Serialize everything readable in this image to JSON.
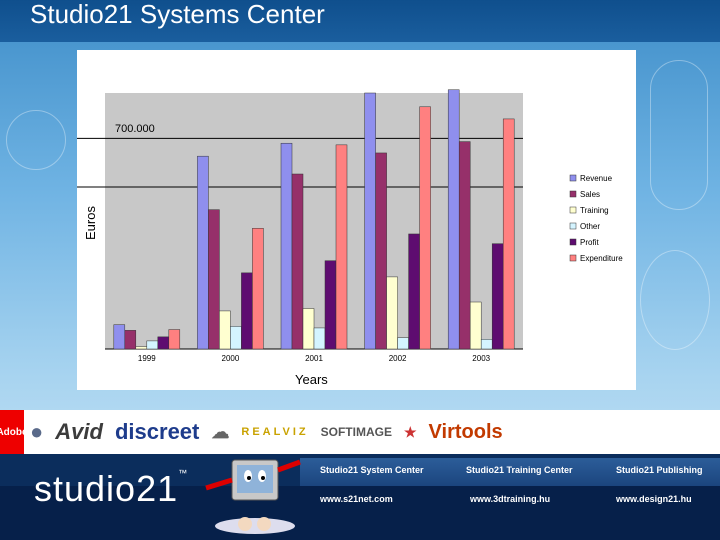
{
  "slide": {
    "title": "Studio21 Systems Center"
  },
  "colors": {
    "revenue": "#8f8fee",
    "sales": "#96306a",
    "training": "#ffffd0",
    "other": "#d4f4ff",
    "profit": "#5e0c70",
    "expenditure": "#ff8080"
  },
  "chart_data": {
    "type": "bar",
    "categories": [
      "1999",
      "2000",
      "2001",
      "2002",
      "2003"
    ],
    "series": [
      {
        "name": "Revenue",
        "color": "#8f8fee",
        "values": [
          150,
          1190,
          1270,
          1580,
          1600
        ]
      },
      {
        "name": "Sales",
        "color": "#96306a",
        "values": [
          115,
          860,
          1080,
          1210,
          1280
        ]
      },
      {
        "name": "Training",
        "color": "#ffffd0",
        "values": [
          15,
          235,
          250,
          445,
          290
        ]
      },
      {
        "name": "Other",
        "color": "#d4f4ff",
        "values": [
          50,
          140,
          130,
          70,
          60
        ]
      },
      {
        "name": "Profit",
        "color": "#5e0c70",
        "values": [
          75,
          470,
          545,
          710,
          650
        ]
      },
      {
        "name": "Expenditure",
        "color": "#ff8080",
        "values": [
          120,
          745,
          1260,
          1495,
          1420
        ]
      }
    ],
    "annotation": "700.000",
    "ylabel": "Euros",
    "xlabel": "Years",
    "ylim": [
      0,
      1580
    ],
    "gridlines": [
      1000,
      1300
    ],
    "legend": "right"
  },
  "logos": {
    "adobe": "Adobe",
    "avid": "Avid",
    "discreet": "discreet",
    "realviz": "REALVIZ",
    "softimage": "SOFTIMAGE",
    "virtools": "Virtools"
  },
  "footer": {
    "system_center": "Studio21 System Center",
    "training_center": "Studio21 Training Center",
    "publishing": "Studio21 Publishing",
    "url_1": "www.s21net.com",
    "url_2": "www.3dtraining.hu",
    "url_3": "www.design21.hu",
    "brand": "studio21"
  }
}
